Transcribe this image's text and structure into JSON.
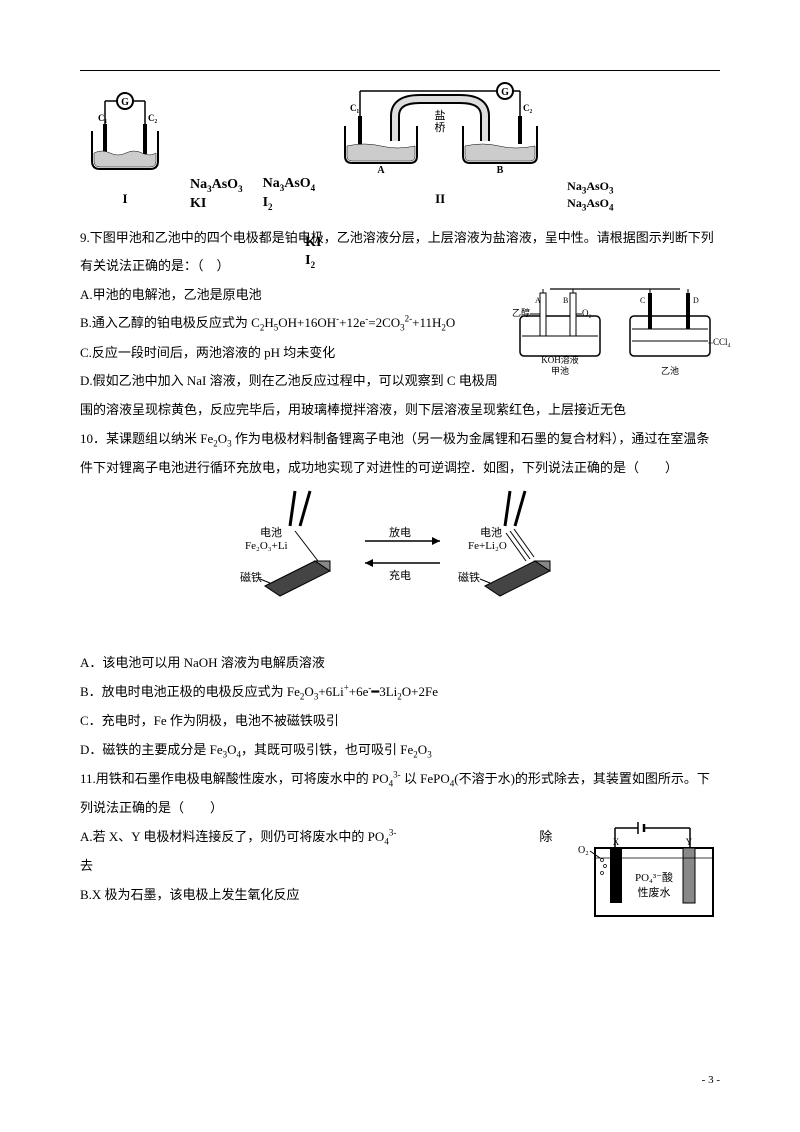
{
  "pageNumber": "- 3 -",
  "diagram1": {
    "left": {
      "galvanometer": "G",
      "c1": "C₁",
      "c2": "C₂",
      "label1_html": "Na<span class=\"sub\">3</span>AsO<span class=\"sub\">3</span>",
      "label2": "KI",
      "roman": "I"
    },
    "mid": {
      "label1_html": "Na<span class=\"sub\">3</span>AsO<span class=\"sub\">4</span>",
      "label2_html": "I<span class=\"sub\">2</span>"
    },
    "right": {
      "galvanometer": "G",
      "c1": "C₁",
      "c2": "C₂",
      "bridge": "盐桥",
      "leftBeaker_html": "KI<br>I<span class=\"sub\">2</span>",
      "rightBeaker_html": "Na<span class=\"sub\">3</span>AsO<span class=\"sub\">3</span><br>Na<span class=\"sub\">3</span>AsO<span class=\"sub\">4</span>",
      "a": "A",
      "b": "B",
      "roman": "II"
    }
  },
  "q9": {
    "stem": "9.下图甲池和乙池中的四个电极都是铂电极，乙池溶液分层，上层溶液为盐溶液，呈中性。请根据图示判断下列有关说法正确的是：（　）",
    "A": "A.甲池的电解池，乙池是原电池",
    "B_html": "B.通入乙醇的铂电极反应式为 C<span class=\"sub\">2</span>H<span class=\"sub\">5</span>OH+16OH<span class=\"sup\">-</span>+12e<span class=\"sup\">-</span>=2CO<span class=\"sub\">3</span><span class=\"sup\">2-</span>+11H<span class=\"sub\">2</span>O",
    "C": "C.反应一段时间后，两池溶液的 pH 均未变化",
    "D": "D.假如乙池中加入 NaI 溶液，则在乙池反应过程中，可以观察到 C 电极周围的溶液呈现棕黄色，反应完毕后，用玻璃棒搅拌溶液，则下层溶液呈现紫红色，上层接近无色",
    "figLabels": {
      "ethanol": "乙醇",
      "o2": "O₂",
      "koh": "KOH溶液",
      "jia": "甲池",
      "ccl4": "CCl₄",
      "yi": "乙池",
      "A": "A",
      "B": "B",
      "C": "C",
      "D": "D"
    }
  },
  "q10": {
    "stem_html": "10．某课题组以纳米 Fe<span class=\"sub\">2</span>O<span class=\"sub\">3</span> 作为电极材料制备锂离子电池（另一极为金属锂和石墨的复合材料），通过在室温条件下对锂离子电池进行循环充放电，成功地实现了对进性的可逆调控．如图，下列说法正确的是（　　）",
    "fig": {
      "leftTop": "电池",
      "leftMat_html": "Fe<span class=\"sub\">2</span>O<span class=\"sub\">3</span>+Li",
      "magnet": "磁铁",
      "discharge": "放电",
      "charge": "充电",
      "rightTop": "电池",
      "rightMat_html": "Fe+Li<span class=\"sub\">2</span>O"
    },
    "A": "A．该电池可以用 NaOH 溶液为电解质溶液",
    "B_html": "B．放电时电池正极的电极反应式为 Fe<span class=\"sub\">2</span>O<span class=\"sub\">3</span>+6Li<span class=\"sup\">+</span>+6e<span class=\"sup\">-</span>━3Li<span class=\"sub\">2</span>O+2Fe",
    "C": "C．充电时，Fe 作为阴极，电池不被磁铁吸引",
    "D_html": "D．磁铁的主要成分是 Fe<span class=\"sub\">3</span>O<span class=\"sub\">4</span>，其既可吸引铁，也可吸引 Fe<span class=\"sub\">2</span>O<span class=\"sub\">3</span>"
  },
  "q11": {
    "stem_html": "11.用铁和石墨作电极电解酸性废水，可将废水中的 PO<span class=\"sub\">4</span><span class=\"sup\">3-</span> 以 FePO<span class=\"sub\">4</span>(不溶于水)的形式除去，其装置如图所示。下列说法正确的是（　　）",
    "A_html": "A.若 X、Y 电极材料连接反了，则仍可将废水中的 PO<span class=\"sub\">4</span><span class=\"sup\">3-</span>　　　　　　　　　　　除去",
    "B": "B.X 极为石墨，该电极上发生氧化反应",
    "fig": {
      "o2": "O₂",
      "x": "X",
      "y": "Y",
      "sol_html": "PO<span class=\"sub\">4</span><span class=\"sup\">3-</span>酸<br>性废水"
    }
  }
}
